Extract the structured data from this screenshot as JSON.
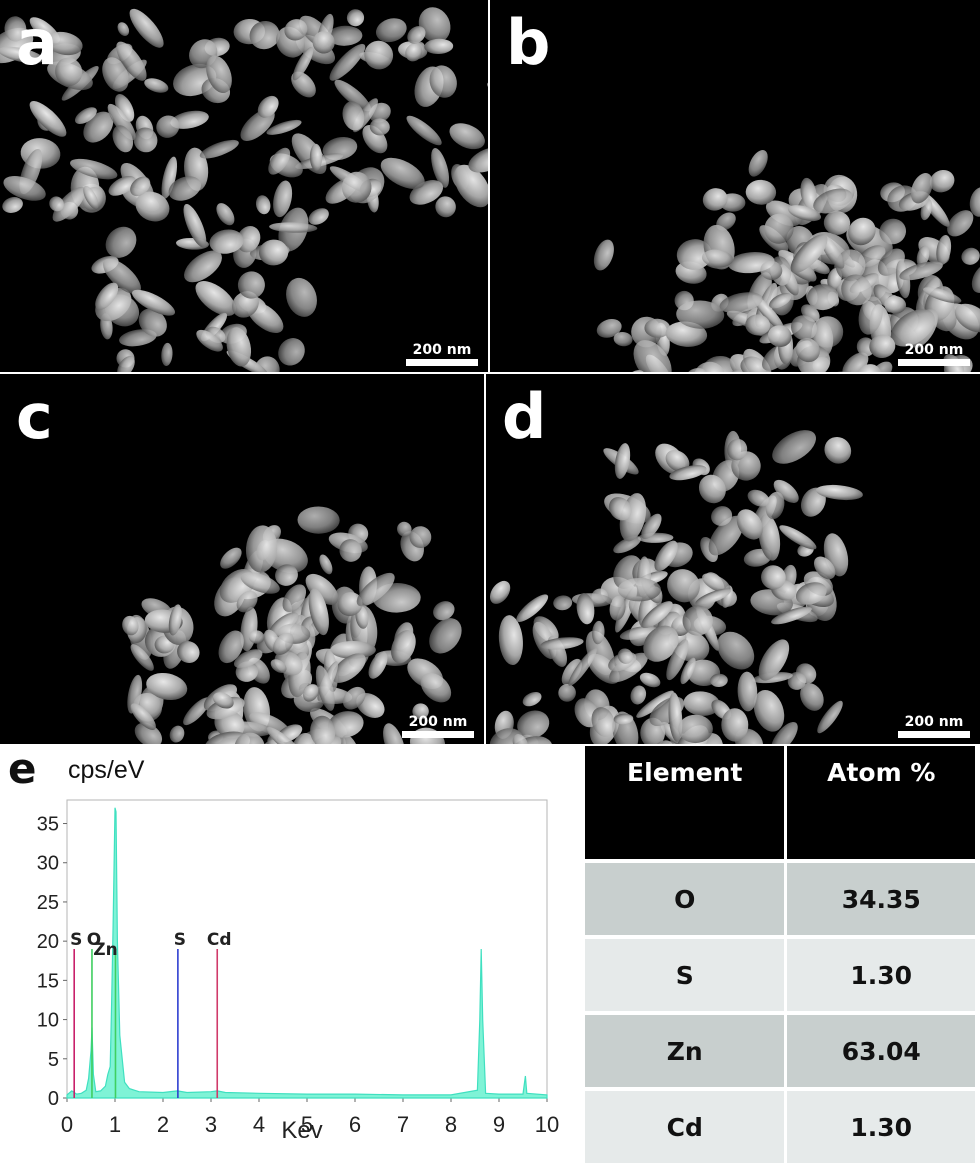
{
  "panels": [
    {
      "label": "a",
      "scale_bar": "200 nm"
    },
    {
      "label": "b",
      "scale_bar": "200 nm"
    },
    {
      "label": "c",
      "scale_bar": "200 nm"
    },
    {
      "label": "d",
      "scale_bar": "200 nm"
    }
  ],
  "chart_data": {
    "type": "line",
    "panel_label": "e",
    "ylabel": "cps/eV",
    "xlabel": "Kev",
    "xlim": [
      0,
      10
    ],
    "ylim": [
      0,
      38
    ],
    "x_ticks": [
      "0",
      "1",
      "2",
      "3",
      "4",
      "5",
      "6",
      "7",
      "8",
      "9",
      "10"
    ],
    "y_ticks": [
      "0",
      "5",
      "10",
      "15",
      "20",
      "25",
      "30",
      "35"
    ],
    "spectrum": [
      [
        0.0,
        0.4
      ],
      [
        0.1,
        0.9
      ],
      [
        0.2,
        0.5
      ],
      [
        0.3,
        0.6
      ],
      [
        0.4,
        1.0
      ],
      [
        0.45,
        2.5
      ],
      [
        0.5,
        6.0
      ],
      [
        0.52,
        9.0
      ],
      [
        0.55,
        3.0
      ],
      [
        0.6,
        0.8
      ],
      [
        0.7,
        0.9
      ],
      [
        0.8,
        1.5
      ],
      [
        0.85,
        3.0
      ],
      [
        0.9,
        4.0
      ],
      [
        0.93,
        12.0
      ],
      [
        0.96,
        22.0
      ],
      [
        1.0,
        37.0
      ],
      [
        1.02,
        36.5
      ],
      [
        1.05,
        20.0
      ],
      [
        1.1,
        8.0
      ],
      [
        1.2,
        2.0
      ],
      [
        1.3,
        1.2
      ],
      [
        1.5,
        0.8
      ],
      [
        2.0,
        0.7
      ],
      [
        2.3,
        0.9
      ],
      [
        2.5,
        0.7
      ],
      [
        3.0,
        0.8
      ],
      [
        3.13,
        0.9
      ],
      [
        3.3,
        0.7
      ],
      [
        4.0,
        0.6
      ],
      [
        5.0,
        0.5
      ],
      [
        6.0,
        0.5
      ],
      [
        7.0,
        0.4
      ],
      [
        8.0,
        0.4
      ],
      [
        8.55,
        1.0
      ],
      [
        8.6,
        10.0
      ],
      [
        8.63,
        19.0
      ],
      [
        8.66,
        10.0
      ],
      [
        8.72,
        0.6
      ],
      [
        9.0,
        0.5
      ],
      [
        9.5,
        0.5
      ],
      [
        9.55,
        2.8
      ],
      [
        9.58,
        0.6
      ],
      [
        10.0,
        0.4
      ]
    ],
    "element_markers": [
      {
        "label": "S",
        "energy": 0.15,
        "color": "#c8206a"
      },
      {
        "label": "O",
        "energy": 0.52,
        "color": "#3fcf60"
      },
      {
        "label": "Zn",
        "energy": 1.01,
        "color": "#3fcf60"
      },
      {
        "label": "S",
        "energy": 2.31,
        "color": "#2f3fd0"
      },
      {
        "label": "Cd",
        "energy": 3.13,
        "color": "#d03a6a"
      }
    ]
  },
  "table": {
    "headers": [
      "Element",
      "Atom %"
    ],
    "rows": [
      [
        "O",
        "34.35"
      ],
      [
        "S",
        "1.30"
      ],
      [
        "Zn",
        "63.04"
      ],
      [
        "Cd",
        "1.30"
      ]
    ]
  }
}
